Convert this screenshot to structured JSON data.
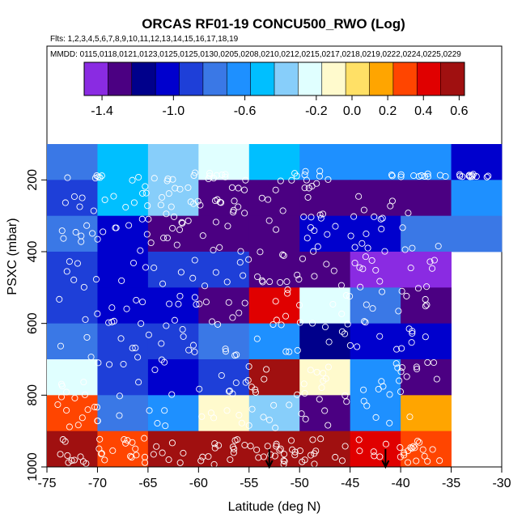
{
  "chart_data": {
    "type": "heatmap",
    "title": "ORCAS RF01-19 CONCU500_RWO (Log)",
    "flights_label": "Flts: 1,2,3,4,5,6,7,8,9,10,11,12,13,14,15,16,17,18,19",
    "dates_label": "MMDD: 0115,0118,0121,0123,0125,0125,0130,0205,0208,0210,0212,0215,0217,0218,0219,0222,0224,0225,0229",
    "xlabel": "Latitude (deg N)",
    "ylabel": "PSXC (mbar)",
    "xlim": [
      -75,
      -30
    ],
    "ylim": [
      1000,
      100
    ],
    "x_ticks": [
      -75,
      -70,
      -65,
      -60,
      -55,
      -50,
      -45,
      -40,
      -35,
      -30
    ],
    "y_ticks": [
      200,
      400,
      600,
      800,
      1000
    ],
    "x_edges": [
      -75,
      -70,
      -65,
      -60,
      -55,
      -50,
      -45,
      -40,
      -35,
      -30
    ],
    "y_edges": [
      100,
      200,
      300,
      400,
      500,
      600,
      700,
      800,
      900,
      1000
    ],
    "y_plot_top": 100,
    "cell_row_top": 100,
    "colorbar": {
      "range": [
        -1.5,
        0.63
      ],
      "ticks": [
        -1.4,
        -1.0,
        -0.6,
        -0.2,
        0.0,
        0.2,
        0.4,
        0.6
      ],
      "tick_labels": [
        "-1.4",
        "-1.0",
        "-0.6",
        "-0.2",
        "0.0",
        "0.2",
        "0.4",
        "0.6"
      ],
      "colors": [
        "#8a2be2",
        "#4b0082",
        "#00008b",
        "#0000cd",
        "#1e3fd8",
        "#3a78e6",
        "#1e90ff",
        "#00bfff",
        "#87cefa",
        "#e0ffff",
        "#fffacd",
        "#ffe066",
        "#ffa500",
        "#ff4500",
        "#e00000",
        "#a01010"
      ]
    },
    "cells": [
      [
        -0.75,
        -0.5,
        -0.35,
        -0.3,
        -0.55,
        -0.7,
        -0.7,
        -0.6,
        -1.05
      ],
      [
        -0.85,
        -0.45,
        -0.4,
        -1.35,
        -1.35,
        -1.3,
        -1.3,
        -1.3,
        -0.65
      ],
      [
        -0.8,
        -1.05,
        -1.3,
        -1.3,
        -1.35,
        -1.05,
        -1.0,
        -0.8,
        -0.8
      ],
      [
        -0.95,
        -1.0,
        -0.95,
        -0.95,
        -1.3,
        -1.3,
        -1.4,
        -1.5,
        null
      ],
      [
        -0.95,
        -1.05,
        -1.1,
        -1.3,
        0.4,
        -0.2,
        -0.8,
        -1.3,
        null
      ],
      [
        -0.75,
        -0.95,
        -0.95,
        -0.8,
        -0.65,
        -1.2,
        -1.05,
        -1.0,
        null
      ],
      [
        -0.2,
        -0.85,
        -1.0,
        -0.95,
        0.5,
        -0.1,
        -0.7,
        -1.3,
        null
      ],
      [
        0.3,
        -0.8,
        -0.6,
        -0.05,
        -0.4,
        -1.25,
        -0.7,
        0.2,
        null
      ],
      [
        0.55,
        0.25,
        0.62,
        0.62,
        0.62,
        0.55,
        0.4,
        0.3,
        null
      ]
    ],
    "arrows_x": [
      -53,
      -41.5
    ],
    "point_clusters": [
      {
        "x": [
          -74,
          -68
        ],
        "y": [
          185,
          195
        ],
        "n": 6
      },
      {
        "x": [
          -68,
          -55
        ],
        "y": [
          175,
          230
        ],
        "n": 22
      },
      {
        "x": [
          -52,
          -46
        ],
        "y": [
          175,
          225
        ],
        "n": 14
      },
      {
        "x": [
          -41,
          -29
        ],
        "y": [
          183,
          192
        ],
        "n": 26
      },
      {
        "x": [
          -74,
          -67
        ],
        "y": [
          220,
          300
        ],
        "n": 8
      },
      {
        "x": [
          -67,
          -52
        ],
        "y": [
          225,
          320
        ],
        "n": 34
      },
      {
        "x": [
          -52,
          -38
        ],
        "y": [
          240,
          310
        ],
        "n": 16
      },
      {
        "x": [
          -74,
          -36
        ],
        "y": [
          320,
          480
        ],
        "n": 80
      },
      {
        "x": [
          -74,
          -36
        ],
        "y": [
          480,
          620
        ],
        "n": 70
      },
      {
        "x": [
          -74,
          -36
        ],
        "y": [
          620,
          760
        ],
        "n": 60
      },
      {
        "x": [
          -74,
          -38
        ],
        "y": [
          760,
          900
        ],
        "n": 70
      },
      {
        "x": [
          -74,
          -36
        ],
        "y": [
          920,
          1000
        ],
        "n": 110
      }
    ]
  }
}
